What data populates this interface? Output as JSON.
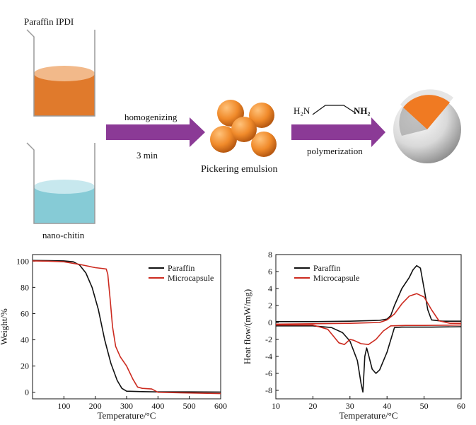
{
  "scheme": {
    "beaker_top_label": "Paraffin  IPDI",
    "beaker_bottom_label": "nano-chitin",
    "arrow1_top": "homogenizing",
    "arrow1_bottom": "3 min",
    "emulsion_label": "Pickering emulsion",
    "amine_left": "H₂N",
    "amine_right": "NH₂",
    "arrow2_bottom": "polymerization",
    "colors": {
      "paraffin": "#e07a2c",
      "paraffin_light": "#f2b98a",
      "chitin": "#86cbd6",
      "chitin_light": "#c7e8ee",
      "arrow": "#8b3a96",
      "sphere": "#f0a040"
    }
  },
  "chart_data": [
    {
      "type": "line",
      "xlabel": "Temperature/°C",
      "ylabel": "Weight/%",
      "xlim": [
        0,
        600
      ],
      "ylim": [
        -5,
        105
      ],
      "xticks": [
        100,
        200,
        300,
        400,
        500,
        600
      ],
      "yticks": [
        0,
        20,
        40,
        60,
        80,
        100
      ],
      "legend_position": "top-right",
      "series": [
        {
          "name": "Paraffin",
          "color": "#111111",
          "x": [
            0,
            50,
            100,
            130,
            150,
            170,
            190,
            210,
            230,
            250,
            270,
            285,
            300,
            350,
            400,
            500,
            600
          ],
          "y": [
            100.5,
            100.4,
            100.2,
            99.5,
            97,
            91,
            80,
            63,
            40,
            22,
            9,
            3,
            0.8,
            0.5,
            0.3,
            0.3,
            0.2
          ]
        },
        {
          "name": "Microcapsule",
          "color": "#cc2a1f",
          "x": [
            0,
            50,
            100,
            150,
            200,
            220,
            235,
            240,
            248,
            255,
            265,
            280,
            300,
            320,
            335,
            350,
            380,
            400,
            500,
            600
          ],
          "y": [
            100.2,
            100,
            99.5,
            97.5,
            95,
            94.5,
            94,
            90,
            70,
            50,
            35,
            27,
            20,
            10,
            4,
            3,
            2.5,
            0,
            -0.5,
            -1
          ]
        }
      ]
    },
    {
      "type": "line",
      "xlabel": "Temperature/°C",
      "ylabel": "Heat flow/(mW/mg)",
      "xlim": [
        10,
        60
      ],
      "ylim": [
        -9,
        8
      ],
      "xticks": [
        10,
        20,
        30,
        40,
        50,
        60
      ],
      "yticks": [
        -8,
        -6,
        -4,
        -2,
        0,
        2,
        4,
        6,
        8
      ],
      "legend_position": "top-left",
      "series": [
        {
          "name": "Paraffin",
          "color": "#111111",
          "x": [
            10,
            20,
            25,
            28,
            30,
            32,
            33,
            33.5,
            34,
            34.5,
            35,
            36,
            37,
            38,
            40,
            42,
            44,
            46,
            48,
            50,
            52,
            60
          ],
          "y": [
            -0.4,
            -0.4,
            -0.6,
            -1.2,
            -2.2,
            -4.5,
            -7.2,
            -8.2,
            -4,
            -3,
            -3.8,
            -5.5,
            -6,
            -5.6,
            -3.5,
            -0.6,
            -0.55,
            -0.55,
            -0.55,
            -0.55,
            -0.55,
            -0.5
          ]
        },
        {
          "name": "Paraffin",
          "color": "#111111",
          "x": [
            10,
            20,
            30,
            38,
            40,
            41,
            42,
            44,
            46,
            47,
            48,
            49,
            50,
            51,
            52,
            55,
            60
          ],
          "y": [
            0.1,
            0.1,
            0.15,
            0.25,
            0.4,
            0.8,
            2,
            4,
            5.3,
            6.2,
            6.7,
            6.4,
            4,
            1.5,
            0.3,
            0.15,
            0.15
          ]
        },
        {
          "name": "Microcapsule",
          "color": "#cc2a1f",
          "x": [
            10,
            20,
            24,
            27,
            28.5,
            30,
            31,
            33,
            35,
            37,
            39,
            41,
            45,
            50,
            60
          ],
          "y": [
            -0.3,
            -0.3,
            -0.8,
            -2.4,
            -2.6,
            -2,
            -2.1,
            -2.5,
            -2.6,
            -2,
            -1,
            -0.4,
            -0.35,
            -0.35,
            -0.3
          ]
        },
        {
          "name": "Microcapsule",
          "color": "#cc2a1f",
          "x": [
            10,
            30,
            38,
            40,
            42,
            44,
            46,
            48,
            50,
            52,
            54,
            57,
            60
          ],
          "y": [
            -0.2,
            -0.1,
            0,
            0.3,
            1,
            2.2,
            3.1,
            3.4,
            3,
            1.5,
            0.2,
            -0.1,
            -0.1
          ]
        }
      ]
    }
  ]
}
